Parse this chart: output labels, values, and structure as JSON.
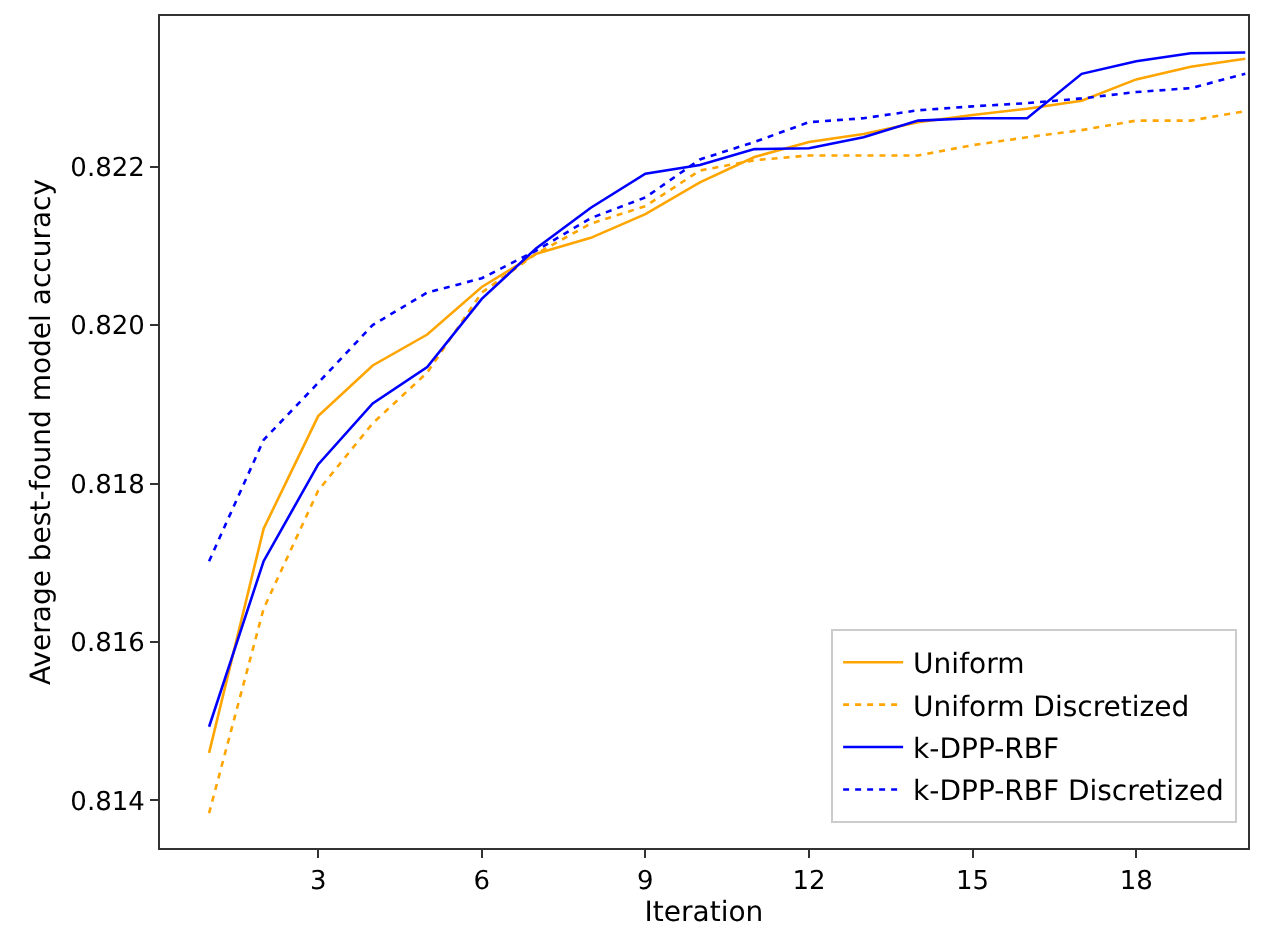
{
  "chart_data": {
    "type": "line",
    "xlabel": "Iteration",
    "ylabel": "Average best-found model accuracy",
    "x": [
      1,
      2,
      3,
      4,
      5,
      6,
      7,
      8,
      9,
      10,
      11,
      12,
      13,
      14,
      15,
      16,
      17,
      18,
      19,
      20
    ],
    "xlim": [
      0.1,
      20.05
    ],
    "xticks": [
      3,
      6,
      9,
      12,
      15,
      18
    ],
    "ylim": [
      0.8134,
      0.8239
    ],
    "yticks": [
      0.814,
      0.816,
      0.818,
      {
        "value": 0.82,
        "label": "0.820"
      },
      0.822
    ],
    "grid": false,
    "legend": "bottom right",
    "marker": "none",
    "series": [
      {
        "name": "Uniform",
        "color": "#ffa500",
        "line_style": "solid",
        "values": [
          0.8146,
          0.81743,
          0.81885,
          0.81949,
          0.81988,
          0.82048,
          0.8209,
          0.8211,
          0.8214,
          0.8218,
          0.82212,
          0.82231,
          0.82241,
          0.82256,
          0.82265,
          0.82273,
          0.82283,
          0.8231,
          0.82326,
          0.82336
        ]
      },
      {
        "name": "Uniform Discretized",
        "color": "#ffa500",
        "line_style": "dotted",
        "values": [
          0.81384,
          0.81642,
          0.81791,
          0.81876,
          0.8194,
          0.82041,
          0.8209,
          0.82128,
          0.8215,
          0.82195,
          0.82208,
          0.82214,
          0.82214,
          0.82214,
          0.82227,
          0.82237,
          0.82246,
          0.82258,
          0.82258,
          0.8227
        ]
      },
      {
        "name": "k-DPP-RBF",
        "color": "#0000ff",
        "line_style": "solid",
        "values": [
          0.81493,
          0.81702,
          0.81824,
          0.81901,
          0.81947,
          0.82033,
          0.82097,
          0.82148,
          0.82191,
          0.82202,
          0.82222,
          0.82223,
          0.82237,
          0.82258,
          0.82261,
          0.82261,
          0.82317,
          0.82333,
          0.82343,
          0.82344
        ]
      },
      {
        "name": "k-DPP-RBF Discretized",
        "color": "#0000ff",
        "line_style": "dotted",
        "values": [
          0.81702,
          0.81855,
          0.81927,
          0.82,
          0.82041,
          0.82059,
          0.82094,
          0.82135,
          0.82161,
          0.82209,
          0.82231,
          0.82256,
          0.82261,
          0.82271,
          0.82276,
          0.8228,
          0.82286,
          0.82294,
          0.82299,
          0.82317
        ]
      }
    ]
  }
}
